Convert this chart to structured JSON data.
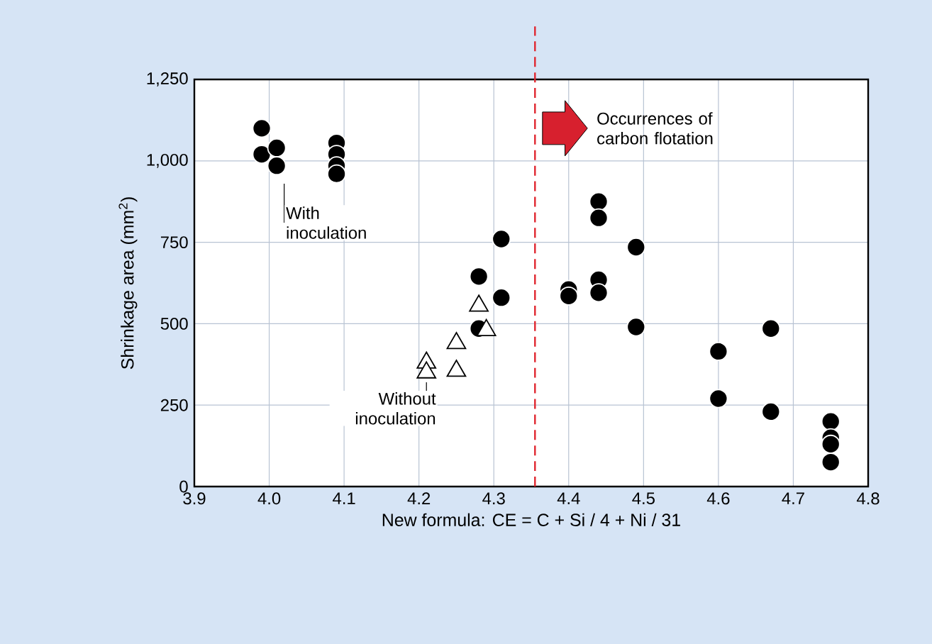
{
  "chart_data": {
    "type": "scatter",
    "xlabel": "New formula: CE = C + Si / 4 + Ni / 31",
    "ylabel": "Shrinkage area (mm$^{2}$)",
    "xlim": [
      3.9,
      4.8
    ],
    "xticks": [
      {
        "value": 3.9,
        "label": "3.9"
      },
      {
        "value": 4.0,
        "label": "4.0"
      },
      {
        "value": 4.1,
        "label": "4.1"
      },
      {
        "value": 4.2,
        "label": "4.2"
      },
      {
        "value": 4.3,
        "label": "4.3"
      },
      {
        "value": 4.4,
        "label": "4.4"
      },
      {
        "value": 4.5,
        "label": "4.5"
      },
      {
        "value": 4.6,
        "label": "4.6"
      },
      {
        "value": 4.7,
        "label": "4.7"
      },
      {
        "value": 4.8,
        "label": "4.8"
      }
    ],
    "ylim": [
      0,
      1250
    ],
    "yticks": [
      0,
      250,
      500,
      750,
      {
        "value": 1000,
        "label": "1,000"
      },
      {
        "value": 1250,
        "label": "1,250"
      }
    ],
    "grid": true,
    "series": [
      {
        "name": "With inoculation",
        "color": "#000000",
        "marker": "circle",
        "x": [
          3.99,
          3.99,
          4.01,
          4.01,
          4.09,
          4.09,
          4.09,
          4.09,
          4.28,
          4.28,
          4.31,
          4.31,
          4.4,
          4.4,
          4.44,
          4.44,
          4.44,
          4.44,
          4.49,
          4.49,
          4.6,
          4.6,
          4.67,
          4.67,
          4.75,
          4.75,
          4.75,
          4.75
        ],
        "values": [
          1100,
          1020,
          1040,
          985,
          1055,
          1020,
          985,
          960,
          645,
          485,
          760,
          580,
          605,
          585,
          875,
          825,
          635,
          595,
          735,
          490,
          415,
          270,
          485,
          230,
          200,
          150,
          130,
          75
        ]
      },
      {
        "name": "Without inoculation",
        "color": "#ffffff",
        "marker": "triangle",
        "x": [
          4.21,
          4.21,
          4.25,
          4.25,
          4.28,
          4.29
        ],
        "values": [
          380,
          350,
          440,
          355,
          555,
          480
        ]
      }
    ],
    "ref_lines": [
      {
        "axis": "x",
        "value": 4.355,
        "color": "#e0262f",
        "line_style": "dashed"
      }
    ],
    "annotations": [
      "Occurrences of carbon flotation"
    ]
  }
}
